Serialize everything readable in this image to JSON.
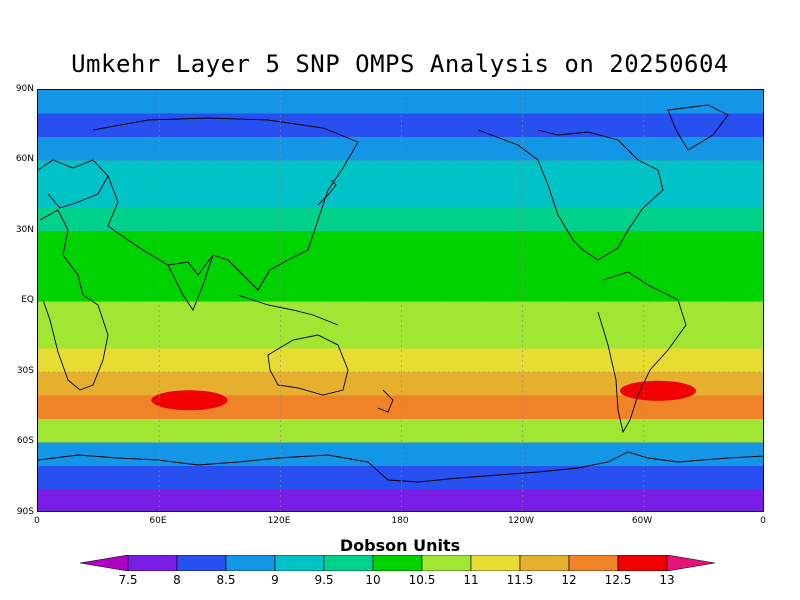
{
  "title": "Umkehr Layer 5 SNP OMPS Analysis on 20250604",
  "y_ticks": [
    "90N",
    "60N",
    "30N",
    "EQ",
    "30S",
    "60S",
    "90S"
  ],
  "x_ticks": [
    "0",
    "60E",
    "120E",
    "180",
    "120W",
    "60W",
    "0"
  ],
  "legend": {
    "title": "Dobson Units",
    "labels": [
      "7.5",
      "8",
      "8.5",
      "9",
      "9.5",
      "10",
      "10.5",
      "11",
      "11.5",
      "12",
      "12.5",
      "13"
    ],
    "colors": [
      "#b000c8",
      "#7a1ee6",
      "#2850f0",
      "#1496e6",
      "#00c3c8",
      "#00d28c",
      "#00d200",
      "#a0e632",
      "#e6dc32",
      "#e6af2d",
      "#f08228",
      "#f00000",
      "#e6147a"
    ]
  },
  "chart_data": {
    "type": "heatmap",
    "title": "Umkehr Layer 5 SNP OMPS Analysis on 20250604",
    "colorbar_label": "Dobson Units",
    "x_range_lon": [
      0,
      360
    ],
    "y_range_lat": [
      -90,
      90
    ],
    "zonal_levels_by_latitude": [
      {
        "lat": 85,
        "level": 8.5
      },
      {
        "lat": 75,
        "level": 8
      },
      {
        "lat": 65,
        "level": 8.5
      },
      {
        "lat": 55,
        "level": 9
      },
      {
        "lat": 45,
        "level": 9
      },
      {
        "lat": 35,
        "level": 9.5
      },
      {
        "lat": 25,
        "level": 10
      },
      {
        "lat": 15,
        "level": 10
      },
      {
        "lat": 5,
        "level": 10
      },
      {
        "lat": -5,
        "level": 10.5
      },
      {
        "lat": -15,
        "level": 10.5
      },
      {
        "lat": -25,
        "level": 11
      },
      {
        "lat": -35,
        "level": 11.5
      },
      {
        "lat": -45,
        "level": 12
      },
      {
        "lat": -55,
        "level": 10.5
      },
      {
        "lat": -65,
        "level": 8.5
      },
      {
        "lat": -75,
        "level": 8
      },
      {
        "lat": -85,
        "level": 7.5
      }
    ],
    "maxima_regions": [
      {
        "lon": 75,
        "lat": -42,
        "level": 12.5
      },
      {
        "lon": 307,
        "lat": -38,
        "level": 12.5
      }
    ]
  }
}
